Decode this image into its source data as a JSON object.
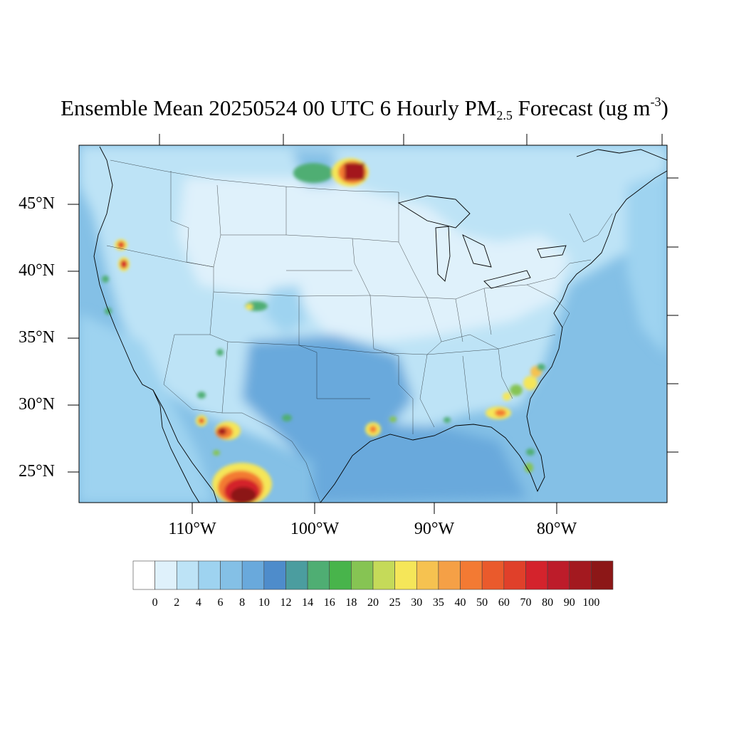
{
  "title": {
    "main": "Ensemble Mean 20250524 00 UTC 6 Hourly PM",
    "sub": "2.5",
    "mid": " Forecast (ug m",
    "sup": "-3",
    "end": ")"
  },
  "lat_labels": [
    "45°N",
    "40°N",
    "35°N",
    "30°N",
    "25°N"
  ],
  "lon_labels": [
    "110°W",
    "100°W",
    "90°W",
    "80°W"
  ],
  "colorbar": {
    "labels": [
      "0",
      "2",
      "4",
      "6",
      "8",
      "10",
      "12",
      "14",
      "16",
      "18",
      "20",
      "25",
      "30",
      "35",
      "40",
      "50",
      "60",
      "70",
      "80",
      "90",
      "100"
    ],
    "colors": [
      "#ffffff",
      "#dff1fb",
      "#bde3f6",
      "#9ed3f0",
      "#84c0e6",
      "#69a9dc",
      "#4e8ccb",
      "#4b9d9f",
      "#4fae73",
      "#48b44b",
      "#86c453",
      "#c5da59",
      "#f5e659",
      "#f6c250",
      "#f5a046",
      "#f37a33",
      "#ea5a2c",
      "#e0402a",
      "#d4232c",
      "#bd1c2a",
      "#a3191f",
      "#8c1717"
    ]
  },
  "map_colors": {
    "ocean_gulf": "#69a9dc",
    "land_light": "#dff1fb",
    "land_mid": "#bde3f6",
    "plume_core": "#b31b20"
  }
}
